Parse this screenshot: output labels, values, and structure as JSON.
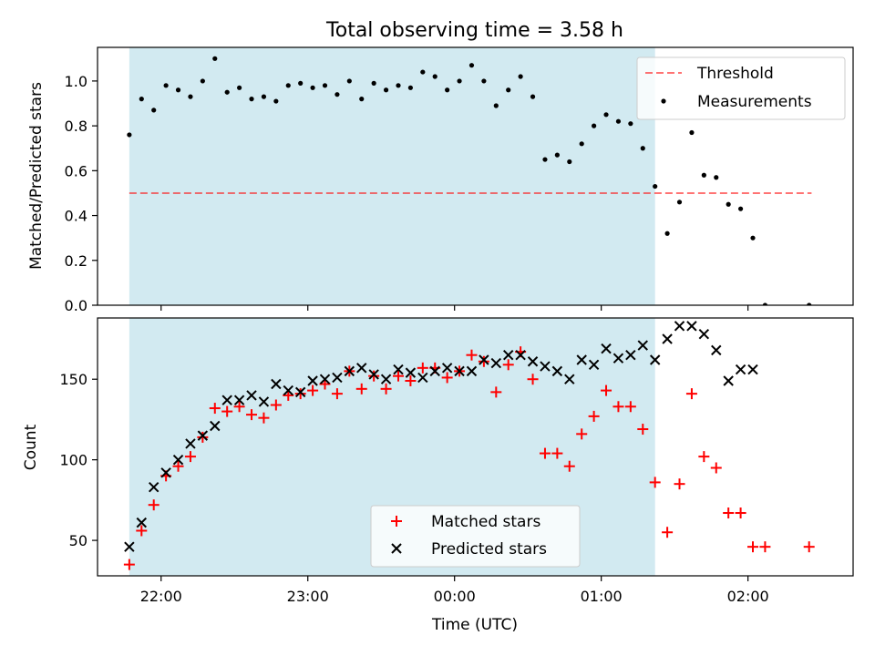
{
  "title": "Total observing time = 3.58 h",
  "colors": {
    "observing_band": "#add8e6",
    "threshold": "#ff0000",
    "matched": "#ff0000",
    "predicted": "#000000",
    "measurement": "#000000"
  },
  "chart_data": [
    {
      "type": "scatter",
      "panel": "top",
      "ylabel": "Matched/Predicted stars",
      "xlim": [
        "21:34",
        "02:43"
      ],
      "ylim": [
        0,
        1.15
      ],
      "yticks": [
        0.0,
        0.2,
        0.4,
        0.6,
        0.8,
        1.0
      ],
      "ytick_labels": [
        "0.0",
        "0.2",
        "0.4",
        "0.6",
        "0.8",
        "1.0"
      ],
      "xtick_positions": [
        "22:00",
        "23:00",
        "00:00",
        "01:00",
        "02:00"
      ],
      "observing_window": [
        "21:47",
        "01:22"
      ],
      "legend_position": "top-right",
      "series": [
        {
          "name": "Threshold",
          "style": "dashed-line",
          "points": [
            [
              "21:47",
              0.5
            ],
            [
              "02:26",
              0.5
            ]
          ]
        },
        {
          "name": "Measurements",
          "style": "dot",
          "points": [
            [
              "21:47",
              0.76
            ],
            [
              "21:52",
              0.92
            ],
            [
              "21:57",
              0.87
            ],
            [
              "22:02",
              0.98
            ],
            [
              "22:07",
              0.96
            ],
            [
              "22:12",
              0.93
            ],
            [
              "22:17",
              1.0
            ],
            [
              "22:22",
              1.1
            ],
            [
              "22:27",
              0.95
            ],
            [
              "22:32",
              0.97
            ],
            [
              "22:37",
              0.92
            ],
            [
              "22:42",
              0.93
            ],
            [
              "22:47",
              0.91
            ],
            [
              "22:52",
              0.98
            ],
            [
              "22:57",
              0.99
            ],
            [
              "23:02",
              0.97
            ],
            [
              "23:07",
              0.98
            ],
            [
              "23:12",
              0.94
            ],
            [
              "23:17",
              1.0
            ],
            [
              "23:22",
              0.92
            ],
            [
              "23:27",
              0.99
            ],
            [
              "23:32",
              0.96
            ],
            [
              "23:37",
              0.98
            ],
            [
              "23:42",
              0.97
            ],
            [
              "23:47",
              1.04
            ],
            [
              "23:52",
              1.02
            ],
            [
              "23:57",
              0.96
            ],
            [
              "00:02",
              1.0
            ],
            [
              "00:07",
              1.07
            ],
            [
              "00:12",
              1.0
            ],
            [
              "00:17",
              0.89
            ],
            [
              "00:22",
              0.96
            ],
            [
              "00:27",
              1.02
            ],
            [
              "00:32",
              0.93
            ],
            [
              "00:37",
              0.65
            ],
            [
              "00:42",
              0.67
            ],
            [
              "00:47",
              0.64
            ],
            [
              "00:52",
              0.72
            ],
            [
              "00:57",
              0.8
            ],
            [
              "01:02",
              0.85
            ],
            [
              "01:07",
              0.82
            ],
            [
              "01:12",
              0.81
            ],
            [
              "01:17",
              0.7
            ],
            [
              "01:22",
              0.53
            ],
            [
              "01:27",
              0.32
            ],
            [
              "01:32",
              0.46
            ],
            [
              "01:37",
              0.77
            ],
            [
              "01:42",
              0.58
            ],
            [
              "01:47",
              0.57
            ],
            [
              "01:52",
              0.45
            ],
            [
              "01:57",
              0.43
            ],
            [
              "02:02",
              0.3
            ],
            [
              "02:07",
              0.0
            ],
            [
              "02:25",
              0.0
            ]
          ]
        }
      ]
    },
    {
      "type": "scatter",
      "panel": "bottom",
      "xlabel": "Time (UTC)",
      "ylabel": "Count",
      "xlim": [
        "21:34",
        "02:43"
      ],
      "ylim": [
        28,
        188
      ],
      "yticks": [
        50,
        100,
        150
      ],
      "ytick_labels": [
        "50",
        "100",
        "150"
      ],
      "xtick_positions": [
        "22:00",
        "23:00",
        "00:00",
        "01:00",
        "02:00"
      ],
      "xtick_labels": [
        "22:00",
        "23:00",
        "00:00",
        "01:00",
        "02:00"
      ],
      "observing_window": [
        "21:47",
        "01:22"
      ],
      "legend_position": "lower-center",
      "series": [
        {
          "name": "Matched stars",
          "marker": "plus",
          "points": [
            [
              "21:47",
              35
            ],
            [
              "21:52",
              56
            ],
            [
              "21:57",
              72
            ],
            [
              "22:02",
              90
            ],
            [
              "22:07",
              96
            ],
            [
              "22:12",
              102
            ],
            [
              "22:17",
              114
            ],
            [
              "22:22",
              132
            ],
            [
              "22:27",
              130
            ],
            [
              "22:32",
              133
            ],
            [
              "22:37",
              128
            ],
            [
              "22:42",
              126
            ],
            [
              "22:47",
              134
            ],
            [
              "22:52",
              140
            ],
            [
              "22:57",
              141
            ],
            [
              "23:02",
              143
            ],
            [
              "23:07",
              147
            ],
            [
              "23:12",
              141
            ],
            [
              "23:17",
              155
            ],
            [
              "23:22",
              144
            ],
            [
              "23:27",
              152
            ],
            [
              "23:32",
              144
            ],
            [
              "23:37",
              152
            ],
            [
              "23:42",
              149
            ],
            [
              "23:47",
              157
            ],
            [
              "23:52",
              157
            ],
            [
              "23:57",
              151
            ],
            [
              "00:02",
              155
            ],
            [
              "00:07",
              165
            ],
            [
              "00:12",
              161
            ],
            [
              "00:17",
              142
            ],
            [
              "00:22",
              159
            ],
            [
              "00:27",
              167
            ],
            [
              "00:32",
              150
            ],
            [
              "00:37",
              104
            ],
            [
              "00:42",
              104
            ],
            [
              "00:47",
              96
            ],
            [
              "00:52",
              116
            ],
            [
              "00:57",
              127
            ],
            [
              "01:02",
              143
            ],
            [
              "01:07",
              133
            ],
            [
              "01:12",
              133
            ],
            [
              "01:17",
              119
            ],
            [
              "01:22",
              86
            ],
            [
              "01:27",
              55
            ],
            [
              "01:32",
              85
            ],
            [
              "01:37",
              141
            ],
            [
              "01:42",
              102
            ],
            [
              "01:47",
              95
            ],
            [
              "01:52",
              67
            ],
            [
              "01:57",
              67
            ],
            [
              "02:02",
              46
            ],
            [
              "02:07",
              46
            ],
            [
              "02:25",
              46
            ]
          ]
        },
        {
          "name": "Predicted stars",
          "marker": "x",
          "points": [
            [
              "21:47",
              46
            ],
            [
              "21:52",
              61
            ],
            [
              "21:57",
              83
            ],
            [
              "22:02",
              92
            ],
            [
              "22:07",
              100
            ],
            [
              "22:12",
              110
            ],
            [
              "22:17",
              115
            ],
            [
              "22:22",
              121
            ],
            [
              "22:27",
              137
            ],
            [
              "22:32",
              137
            ],
            [
              "22:37",
              140
            ],
            [
              "22:42",
              136
            ],
            [
              "22:47",
              147
            ],
            [
              "22:52",
              143
            ],
            [
              "22:57",
              142
            ],
            [
              "23:02",
              149
            ],
            [
              "23:07",
              150
            ],
            [
              "23:12",
              151
            ],
            [
              "23:17",
              155
            ],
            [
              "23:22",
              157
            ],
            [
              "23:27",
              153
            ],
            [
              "23:32",
              150
            ],
            [
              "23:37",
              156
            ],
            [
              "23:42",
              154
            ],
            [
              "23:47",
              151
            ],
            [
              "23:52",
              155
            ],
            [
              "23:57",
              157
            ],
            [
              "00:02",
              155
            ],
            [
              "00:07",
              155
            ],
            [
              "00:12",
              162
            ],
            [
              "00:17",
              160
            ],
            [
              "00:22",
              165
            ],
            [
              "00:27",
              165
            ],
            [
              "00:32",
              161
            ],
            [
              "00:37",
              158
            ],
            [
              "00:42",
              155
            ],
            [
              "00:47",
              150
            ],
            [
              "00:52",
              162
            ],
            [
              "00:57",
              159
            ],
            [
              "01:02",
              169
            ],
            [
              "01:07",
              163
            ],
            [
              "01:12",
              165
            ],
            [
              "01:17",
              171
            ],
            [
              "01:22",
              162
            ],
            [
              "01:27",
              175
            ],
            [
              "01:32",
              183
            ],
            [
              "01:37",
              183
            ],
            [
              "01:42",
              178
            ],
            [
              "01:47",
              168
            ],
            [
              "01:52",
              149
            ],
            [
              "01:57",
              156
            ],
            [
              "02:02",
              156
            ]
          ]
        }
      ]
    }
  ]
}
